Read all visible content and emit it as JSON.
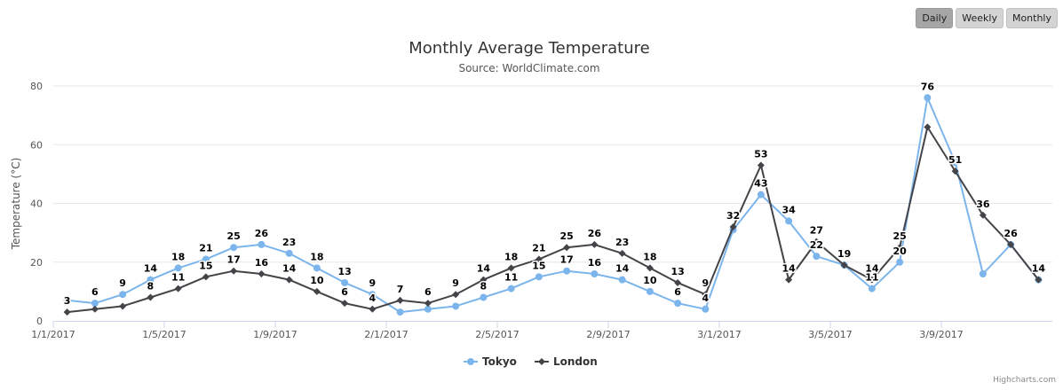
{
  "buttons": [
    {
      "label": "Daily",
      "active": true
    },
    {
      "label": "Weekly",
      "active": false
    },
    {
      "label": "Monthly",
      "active": false
    }
  ],
  "credits": "Highcharts.com",
  "chart_data": {
    "type": "line",
    "title": "Monthly Average Temperature",
    "subtitle": "Source: WorldClimate.com",
    "ylabel": "Temperature (°C)",
    "xlabel": "",
    "ylim": [
      0,
      80
    ],
    "yticks": [
      0,
      20,
      40,
      60,
      80
    ],
    "grid": true,
    "legend_position": "bottom-center",
    "x_tick_labels": [
      {
        "index": 0,
        "label": "1/1/2017"
      },
      {
        "index": 4,
        "label": "1/5/2017"
      },
      {
        "index": 8,
        "label": "1/9/2017"
      },
      {
        "index": 12,
        "label": "2/1/2017"
      },
      {
        "index": 16,
        "label": "2/5/2017"
      },
      {
        "index": 20,
        "label": "2/9/2017"
      },
      {
        "index": 24,
        "label": "3/1/2017"
      },
      {
        "index": 28,
        "label": "3/5/2017"
      },
      {
        "index": 32,
        "label": "3/9/2017"
      }
    ],
    "point_count": 36,
    "series": [
      {
        "name": "Tokyo",
        "color": "#7cb5ec",
        "marker": "circle",
        "values": [
          7,
          6,
          9,
          14,
          18,
          21,
          25,
          26,
          23,
          18,
          13,
          9,
          3,
          4,
          5,
          8,
          11,
          15,
          17,
          16,
          14,
          10,
          6,
          4,
          31,
          43,
          34,
          22,
          19,
          11,
          20,
          76,
          54,
          16,
          26,
          14
        ],
        "labeled_indices": [
          1,
          2,
          3,
          4,
          5,
          6,
          7,
          8,
          9,
          10,
          11,
          15,
          16,
          17,
          18,
          19,
          20,
          21,
          22,
          23,
          25,
          26,
          27,
          28,
          29,
          30,
          31
        ]
      },
      {
        "name": "London",
        "color": "#434348",
        "marker": "diamond",
        "values": [
          3,
          4,
          5,
          8,
          11,
          15,
          17,
          16,
          14,
          10,
          6,
          4,
          7,
          6,
          9,
          14,
          18,
          21,
          25,
          26,
          23,
          18,
          13,
          9,
          32,
          53,
          14,
          27,
          19,
          14,
          25,
          66,
          51,
          36,
          26,
          14
        ],
        "labeled_indices": [
          0,
          3,
          4,
          5,
          6,
          7,
          8,
          9,
          10,
          11,
          12,
          13,
          14,
          15,
          16,
          17,
          18,
          19,
          20,
          21,
          22,
          23,
          24,
          25,
          26,
          27,
          29,
          30,
          32,
          33,
          34,
          35
        ]
      }
    ]
  }
}
